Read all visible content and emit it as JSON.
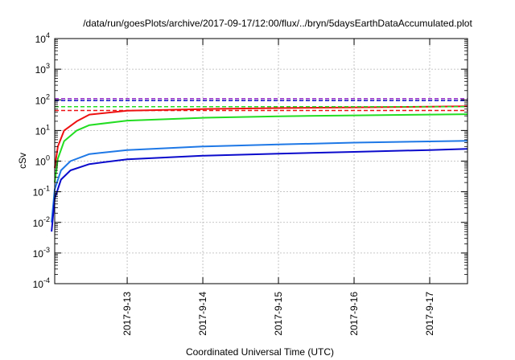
{
  "chart_data": {
    "type": "line",
    "title": "/data/run/goesPlots/archive/2017-09-17/12:00/flux/../bryn/5daysEarthDataAccumulated.plot",
    "xlabel": "Coordinated Universal Time (UTC)",
    "ylabel": "cSv",
    "y_scale": "log",
    "ylim": [
      0.0001,
      10000
    ],
    "xlim": [
      "2017-09-12 01:00",
      "2017-09-17 12:00"
    ],
    "x_ticks": [
      "2017-9-13",
      "2017-9-14",
      "2017-9-15",
      "2017-9-16",
      "2017-9-17"
    ],
    "y_ticks": [
      {
        "base": "10",
        "exp": "-4"
      },
      {
        "base": "10",
        "exp": "-3"
      },
      {
        "base": "10",
        "exp": "-2"
      },
      {
        "base": "10",
        "exp": "-1"
      },
      {
        "base": "10",
        "exp": "0"
      },
      {
        "base": "10",
        "exp": "1"
      },
      {
        "base": "10",
        "exp": "2"
      },
      {
        "base": "10",
        "exp": "3"
      },
      {
        "base": "10",
        "exp": "4"
      }
    ],
    "grid": true,
    "series": [
      {
        "color": "#ee1111",
        "style": "solid",
        "x": [
          "2017-09-12 01:00",
          "2017-09-12 02:00",
          "2017-09-12 04:00",
          "2017-09-12 08:00",
          "2017-09-12 12:00",
          "2017-09-13 00:00",
          "2017-09-14 00:00",
          "2017-09-15 00:00",
          "2017-09-16 00:00",
          "2017-09-17 00:00",
          "2017-09-17 12:00"
        ],
        "y": [
          0.6,
          3,
          10,
          20,
          33,
          44,
          50,
          54,
          57,
          60,
          62
        ]
      },
      {
        "color": "#22dd22",
        "style": "solid",
        "x": [
          "2017-09-12 01:00",
          "2017-09-12 02:00",
          "2017-09-12 04:00",
          "2017-09-12 08:00",
          "2017-09-12 12:00",
          "2017-09-13 00:00",
          "2017-09-14 00:00",
          "2017-09-15 00:00",
          "2017-09-16 00:00",
          "2017-09-17 00:00",
          "2017-09-17 12:00"
        ],
        "y": [
          0.2,
          1.2,
          4.5,
          10,
          15,
          21,
          26,
          29,
          31,
          33,
          34
        ]
      },
      {
        "color": "#1e78e6",
        "style": "solid",
        "x": [
          "2017-09-12 00:00",
          "2017-09-12 01:00",
          "2017-09-12 03:00",
          "2017-09-12 06:00",
          "2017-09-12 12:00",
          "2017-09-13 00:00",
          "2017-09-14 00:00",
          "2017-09-15 00:00",
          "2017-09-16 00:00",
          "2017-09-17 00:00",
          "2017-09-17 12:00"
        ],
        "y": [
          0.01,
          0.12,
          0.5,
          1.0,
          1.7,
          2.3,
          3.0,
          3.5,
          4.0,
          4.4,
          4.6
        ]
      },
      {
        "color": "#0a0acc",
        "style": "solid",
        "x": [
          "2017-09-12 00:00",
          "2017-09-12 01:00",
          "2017-09-12 03:00",
          "2017-09-12 06:00",
          "2017-09-12 12:00",
          "2017-09-13 00:00",
          "2017-09-14 00:00",
          "2017-09-15 00:00",
          "2017-09-16 00:00",
          "2017-09-17 00:00",
          "2017-09-17 12:00"
        ],
        "y": [
          0.005,
          0.06,
          0.25,
          0.5,
          0.8,
          1.15,
          1.5,
          1.75,
          2.0,
          2.3,
          2.5
        ]
      },
      {
        "color": "#9933cc",
        "style": "dashed",
        "x": [
          "2017-09-12 01:00",
          "2017-09-17 12:00"
        ],
        "y": [
          110,
          110
        ]
      },
      {
        "color": "#1111cc",
        "style": "dashed",
        "x": [
          "2017-09-12 01:00",
          "2017-09-17 12:00"
        ],
        "y": [
          95,
          95
        ]
      },
      {
        "color": "#22dd22",
        "style": "dashed",
        "x": [
          "2017-09-12 01:00",
          "2017-09-17 12:00"
        ],
        "y": [
          60,
          60
        ]
      },
      {
        "color": "#ee1111",
        "style": "dashed",
        "x": [
          "2017-09-12 01:00",
          "2017-09-17 12:00"
        ],
        "y": [
          45,
          45
        ]
      }
    ]
  }
}
